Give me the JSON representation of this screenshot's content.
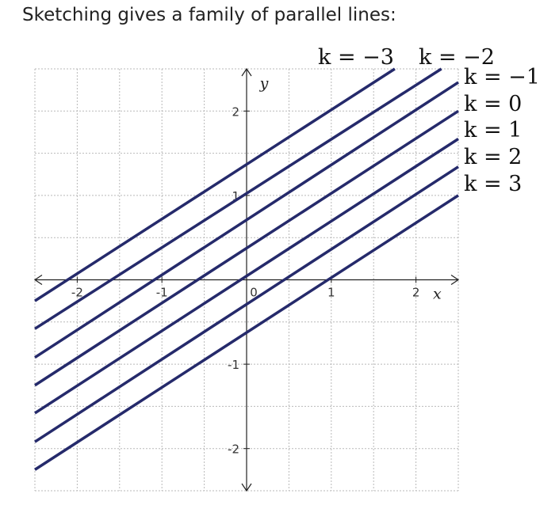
{
  "caption": "Sketching gives a family of parallel lines:",
  "chart_data": {
    "type": "line",
    "title": "",
    "xlabel": "x",
    "ylabel": "y",
    "xlim": [
      -2.5,
      2.5
    ],
    "ylim": [
      -2.5,
      2.5
    ],
    "grid": true,
    "grid_step": 0.5,
    "x_ticks": [
      -2,
      -1,
      0,
      1,
      2
    ],
    "y_ticks": [
      -2,
      -1,
      1,
      2
    ],
    "x_tick_labels": [
      "-2",
      "-1",
      "0",
      "1",
      "2"
    ],
    "y_tick_labels": [
      "-2",
      "-1",
      "1",
      "2"
    ],
    "line_color": "#252a6b",
    "series": [
      {
        "name": "k = −3",
        "label": "k = −3",
        "x": [
          -2.5,
          1.75
        ],
        "y": [
          -0.25,
          2.5
        ]
      },
      {
        "name": "k = −2",
        "label": "k = −2",
        "x": [
          -2.5,
          2.3
        ],
        "y": [
          -0.58,
          2.5
        ]
      },
      {
        "name": "k = −1",
        "label": "k = −1",
        "x": [
          -2.5,
          2.5
        ],
        "y": [
          -0.92,
          2.34
        ]
      },
      {
        "name": "k = 0",
        "label": "k = 0",
        "x": [
          -2.5,
          2.5
        ],
        "y": [
          -1.25,
          2.0
        ]
      },
      {
        "name": "k = 1",
        "label": "k = 1",
        "x": [
          -2.5,
          2.5
        ],
        "y": [
          -1.58,
          1.67
        ]
      },
      {
        "name": "k = 2",
        "label": "k = 2",
        "x": [
          -2.5,
          2.5
        ],
        "y": [
          -1.92,
          1.34
        ]
      },
      {
        "name": "k = 3",
        "label": "k = 3",
        "x": [
          -2.5,
          2.5
        ],
        "y": [
          -2.25,
          1.0
        ]
      }
    ]
  }
}
